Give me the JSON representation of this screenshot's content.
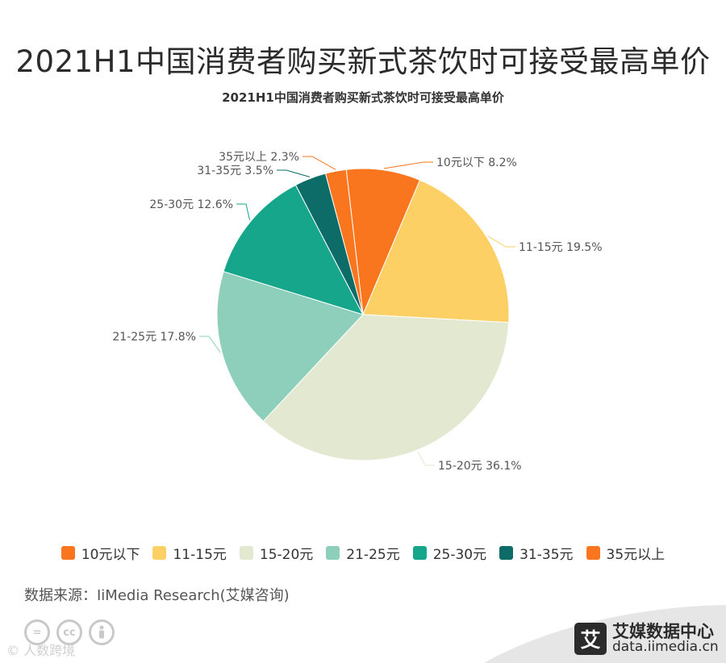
{
  "main_title": "2021H1中国消费者购买新式茶饮时可接受最高单价",
  "chart_data": {
    "type": "pie",
    "title": "2021H1中国消费者购买新式茶饮时可接受最高单价",
    "slices": [
      {
        "label": "10元以下",
        "value": 8.2,
        "display": "10元以下 8.2%",
        "color": "#fa761e"
      },
      {
        "label": "11-15元",
        "value": 19.5,
        "display": "11-15元 19.5%",
        "color": "#fdd065"
      },
      {
        "label": "15-20元",
        "value": 36.1,
        "display": "15-20元 36.1%",
        "color": "#e2e9d0"
      },
      {
        "label": "21-25元",
        "value": 17.8,
        "display": "21-25元 17.8%",
        "color": "#8dcfbb"
      },
      {
        "label": "25-30元",
        "value": 12.6,
        "display": "25-30元 12.6%",
        "color": "#16a68b"
      },
      {
        "label": "31-35元",
        "value": 3.5,
        "display": "31-35元 3.5%",
        "color": "#0e6c68"
      },
      {
        "label": "35元以上",
        "value": 2.3,
        "display": "35元以上 2.3%",
        "color": "#fa761e"
      }
    ],
    "legend_position": "bottom"
  },
  "source": "数据来源：IiMedia Research(艾媒咨询)",
  "license_icons": [
    "=",
    "cc",
    "person-icon"
  ],
  "watermark": "©  人数跨境",
  "brand": {
    "name": "艾媒数据中心",
    "url": "data.iimedia.cn",
    "logo_char": "艾"
  }
}
